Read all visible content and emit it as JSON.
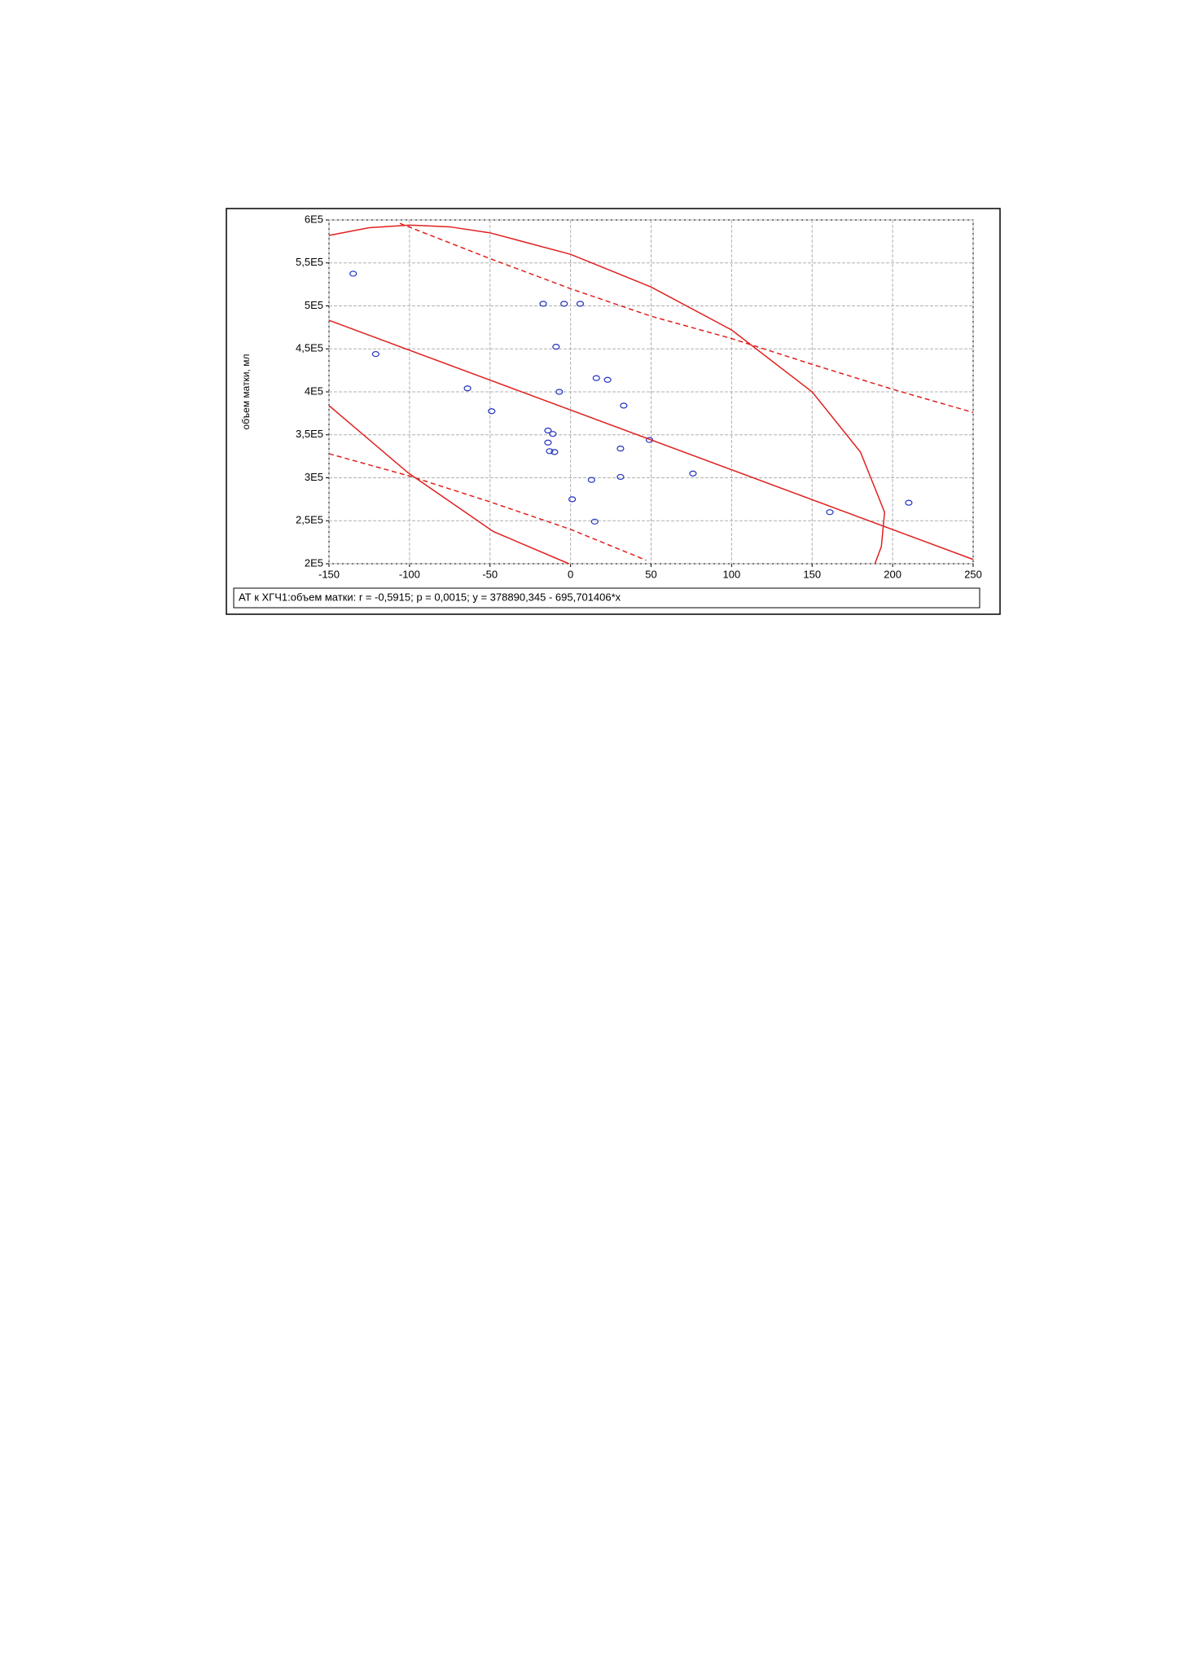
{
  "chart_data": {
    "type": "scatter",
    "y_label": "объем матки, мл",
    "annotation": "АТ к ХГЧ1:объем матки:   r = -0,5915;  p = 0,0015;  y = 378890,345 - 695,701406*x",
    "xlim": [
      -150,
      250
    ],
    "ylim": [
      200000,
      600000
    ],
    "xticks": [
      -150,
      -100,
      -50,
      0,
      50,
      100,
      150,
      200,
      250
    ],
    "yticks": [
      {
        "value": 200000,
        "label": "2E5"
      },
      {
        "value": 250000,
        "label": "2,5E5"
      },
      {
        "value": 300000,
        "label": "3E5"
      },
      {
        "value": 350000,
        "label": "3,5E5"
      },
      {
        "value": 400000,
        "label": "4E5"
      },
      {
        "value": 450000,
        "label": "4,5E5"
      },
      {
        "value": 500000,
        "label": "5E5"
      },
      {
        "value": 550000,
        "label": "5,5E5"
      },
      {
        "value": 600000,
        "label": "6E5"
      }
    ],
    "grid": true,
    "series": [
      {
        "type": "scatter",
        "color": "#2030c0",
        "x": [
          -135,
          -121,
          -64,
          -49,
          -17,
          -4,
          6,
          -9,
          -7,
          16,
          23,
          33,
          -14,
          -11,
          -14,
          -13,
          -10,
          31,
          49,
          13,
          31,
          76,
          1,
          15,
          161,
          210
        ],
        "values": [
          537500,
          444000,
          404000,
          377500,
          502500,
          502500,
          502500,
          452500,
          400000,
          416000,
          414000,
          384000,
          355000,
          351000,
          341000,
          331000,
          330000,
          334000,
          344000,
          297500,
          301000,
          305000,
          275000,
          249000,
          260000,
          271000
        ]
      },
      {
        "type": "line",
        "color": "#e02020",
        "style": "solid",
        "x": [
          -150,
          250
        ],
        "values": [
          483245,
          204965
        ]
      },
      {
        "type": "line",
        "color": "#e02020",
        "style": "dashed",
        "x": [
          -106,
          -50,
          0,
          50,
          100,
          150,
          200,
          250
        ],
        "values": [
          596000,
          555000,
          520000,
          488000,
          462000,
          432000,
          403000,
          376000
        ]
      },
      {
        "type": "line",
        "color": "#e02020",
        "style": "dashed",
        "x": [
          -150,
          -100,
          -50,
          0,
          47
        ],
        "values": [
          328000,
          302000,
          272000,
          240000,
          204000
        ]
      },
      {
        "type": "line",
        "color": "#e02020",
        "style": "solid",
        "x": [
          -150,
          -125,
          -100,
          -75,
          -50,
          0,
          50,
          100,
          150,
          180,
          195,
          193,
          189
        ],
        "values": [
          582000,
          591000,
          594000,
          592000,
          585000,
          560000,
          522000,
          472000,
          400000,
          330000,
          260000,
          220000,
          200000
        ]
      },
      {
        "type": "line",
        "color": "#e02020",
        "style": "solid",
        "x": [
          -150,
          -101,
          -48,
          -1
        ],
        "values": [
          384000,
          306000,
          237500,
          200000
        ]
      }
    ]
  }
}
